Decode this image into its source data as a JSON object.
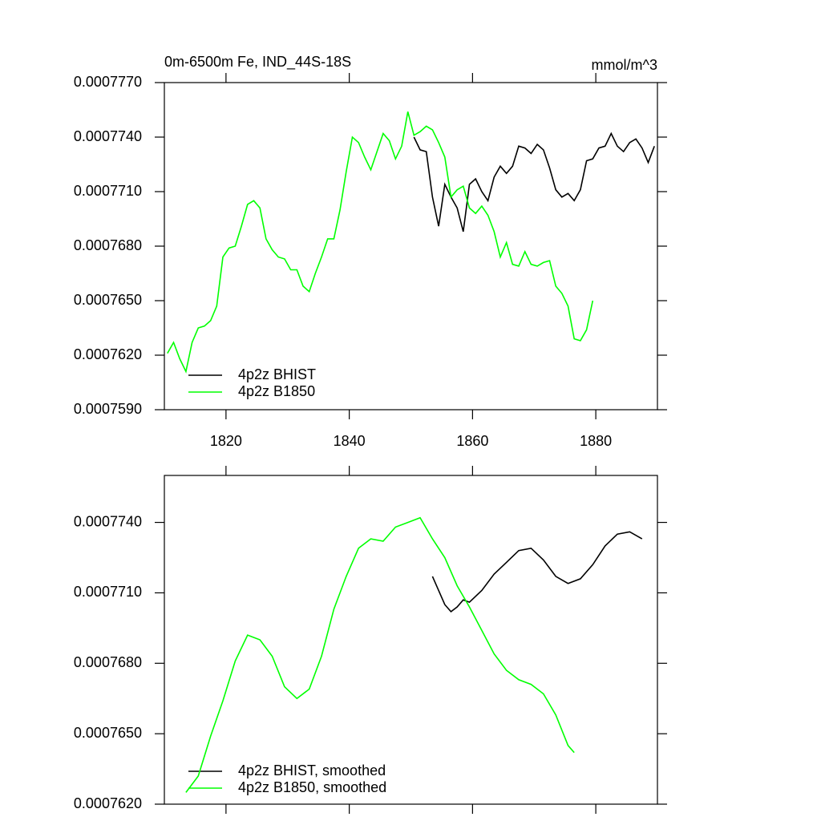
{
  "chart_data": [
    {
      "type": "line",
      "title": "0m-6500m Fe, IND_44S-18S",
      "subtitle": "mmol/m^3",
      "xlim": [
        1810,
        1890
      ],
      "xticks": [
        1820,
        1840,
        1860,
        1880
      ],
      "ylim": [
        0.000759,
        0.000777
      ],
      "yticks": [
        {
          "value": 0.000759,
          "label": "0.0007590"
        },
        {
          "value": 0.000762,
          "label": "0.0007620"
        },
        {
          "value": 0.000765,
          "label": "0.0007650"
        },
        {
          "value": 0.000768,
          "label": "0.0007680"
        },
        {
          "value": 0.000771,
          "label": "0.0007710"
        },
        {
          "value": 0.000774,
          "label": "0.0007740"
        },
        {
          "value": 0.000777,
          "label": "0.0007770"
        }
      ],
      "legend": "lower left",
      "series": [
        {
          "name": "4p2z BHIST",
          "color": "#000000",
          "x": [
            1850.5,
            1851.5,
            1852.5,
            1853.5,
            1854.5,
            1855.5,
            1856.5,
            1857.5,
            1858.5,
            1859.5,
            1860.5,
            1861.5,
            1862.5,
            1863.5,
            1864.5,
            1865.5,
            1866.5,
            1867.5,
            1868.5,
            1869.5,
            1870.5,
            1871.5,
            1872.5,
            1873.5,
            1874.5,
            1875.5,
            1876.5,
            1877.5,
            1878.5,
            1879.5,
            1880.5,
            1881.5,
            1882.5,
            1883.5,
            1884.5,
            1885.5,
            1886.5,
            1887.5,
            1888.5,
            1889.5
          ],
          "values": [
            0.000774,
            0.0007733,
            0.0007732,
            0.0007707,
            0.0007691,
            0.0007714,
            0.0007707,
            0.0007701,
            0.0007688,
            0.0007714,
            0.0007717,
            0.000771,
            0.0007705,
            0.0007718,
            0.0007724,
            0.000772,
            0.0007724,
            0.0007735,
            0.0007734,
            0.0007731,
            0.0007736,
            0.0007733,
            0.0007723,
            0.0007711,
            0.0007707,
            0.0007709,
            0.0007705,
            0.0007711,
            0.0007727,
            0.0007728,
            0.0007734,
            0.0007735,
            0.0007742,
            0.0007735,
            0.0007732,
            0.0007737,
            0.0007739,
            0.0007734,
            0.0007726,
            0.0007735
          ]
        },
        {
          "name": "4p2z B1850",
          "color": "#00ff00",
          "x": [
            1810.5,
            1811.5,
            1812.5,
            1813.5,
            1814.5,
            1815.5,
            1816.5,
            1817.5,
            1818.5,
            1819.5,
            1820.5,
            1821.5,
            1822.5,
            1823.5,
            1824.5,
            1825.5,
            1826.5,
            1827.5,
            1828.5,
            1829.5,
            1830.5,
            1831.5,
            1832.5,
            1833.5,
            1834.5,
            1835.5,
            1836.5,
            1837.5,
            1838.5,
            1839.5,
            1840.5,
            1841.5,
            1842.5,
            1843.5,
            1844.5,
            1845.5,
            1846.5,
            1847.5,
            1848.5,
            1849.5,
            1850.5,
            1851.5,
            1852.5,
            1853.5,
            1854.5,
            1855.5,
            1856.5,
            1857.5,
            1858.5,
            1859.5,
            1860.5,
            1861.5,
            1862.5,
            1863.5,
            1864.5,
            1865.5,
            1866.5,
            1867.5,
            1868.5,
            1869.5,
            1870.5,
            1871.5,
            1872.5,
            1873.5,
            1874.5,
            1875.5,
            1876.5,
            1877.5,
            1878.5,
            1879.5
          ],
          "values": [
            0.0007621,
            0.0007627,
            0.0007618,
            0.0007611,
            0.0007627,
            0.0007635,
            0.0007636,
            0.0007639,
            0.0007647,
            0.0007674,
            0.0007679,
            0.000768,
            0.0007691,
            0.0007703,
            0.0007705,
            0.0007701,
            0.0007684,
            0.0007678,
            0.0007674,
            0.0007673,
            0.0007667,
            0.0007667,
            0.0007658,
            0.0007655,
            0.0007665,
            0.0007674,
            0.0007684,
            0.0007684,
            0.00077,
            0.0007721,
            0.000774,
            0.0007737,
            0.0007729,
            0.0007722,
            0.0007732,
            0.0007742,
            0.0007738,
            0.0007728,
            0.0007735,
            0.0007754,
            0.0007741,
            0.0007743,
            0.0007746,
            0.0007744,
            0.0007737,
            0.0007729,
            0.0007707,
            0.0007711,
            0.0007713,
            0.0007701,
            0.0007698,
            0.0007702,
            0.0007697,
            0.0007688,
            0.0007674,
            0.0007682,
            0.000767,
            0.0007669,
            0.0007677,
            0.000767,
            0.0007669,
            0.0007671,
            0.0007672,
            0.0007658,
            0.0007654,
            0.0007647,
            0.0007629,
            0.0007628,
            0.0007634,
            0.000765
          ]
        }
      ]
    },
    {
      "type": "line",
      "xlim": [
        1810,
        1890
      ],
      "xticks": [
        1820,
        1840,
        1860,
        1880
      ],
      "ylim": [
        0.000762,
        0.000776
      ],
      "yticks": [
        {
          "value": 0.000762,
          "label": "0.0007620"
        },
        {
          "value": 0.000765,
          "label": "0.0007650"
        },
        {
          "value": 0.000768,
          "label": "0.0007680"
        },
        {
          "value": 0.000771,
          "label": "0.0007710"
        },
        {
          "value": 0.000774,
          "label": "0.0007740"
        }
      ],
      "legend": "lower left",
      "series": [
        {
          "name": "4p2z BHIST, smoothed",
          "color": "#000000",
          "x": [
            1853.5,
            1855.5,
            1856.5,
            1857.5,
            1858.5,
            1859.5,
            1861.5,
            1863.5,
            1865.5,
            1867.5,
            1869.5,
            1871.5,
            1873.5,
            1875.5,
            1877.5,
            1879.5,
            1881.5,
            1883.5,
            1885.5,
            1887.5
          ],
          "values": [
            0.0007717,
            0.0007705,
            0.0007702,
            0.0007704,
            0.0007707,
            0.0007706,
            0.0007711,
            0.0007718,
            0.0007723,
            0.0007728,
            0.0007729,
            0.0007724,
            0.0007717,
            0.0007714,
            0.0007716,
            0.0007722,
            0.000773,
            0.0007735,
            0.0007736,
            0.0007733
          ]
        },
        {
          "name": "4p2z B1850, smoothed",
          "color": "#00ff00",
          "x": [
            1813.5,
            1815.5,
            1817.5,
            1819.5,
            1821.5,
            1823.5,
            1825.5,
            1827.5,
            1829.5,
            1831.5,
            1833.5,
            1835.5,
            1837.5,
            1839.5,
            1841.5,
            1843.5,
            1845.5,
            1847.5,
            1849.5,
            1851.5,
            1853.5,
            1855.5,
            1857.5,
            1859.5,
            1861.5,
            1863.5,
            1865.5,
            1867.5,
            1869.5,
            1871.5,
            1873.5,
            1875.5,
            1876.5
          ],
          "values": [
            0.0007625,
            0.0007632,
            0.0007649,
            0.0007664,
            0.0007681,
            0.0007692,
            0.000769,
            0.0007683,
            0.000767,
            0.0007665,
            0.0007669,
            0.0007683,
            0.0007703,
            0.0007717,
            0.0007729,
            0.0007733,
            0.0007732,
            0.0007738,
            0.000774,
            0.0007742,
            0.0007733,
            0.0007725,
            0.0007713,
            0.0007704,
            0.0007694,
            0.0007684,
            0.0007677,
            0.0007673,
            0.0007671,
            0.0007667,
            0.0007658,
            0.0007645,
            0.0007642
          ]
        }
      ]
    }
  ]
}
